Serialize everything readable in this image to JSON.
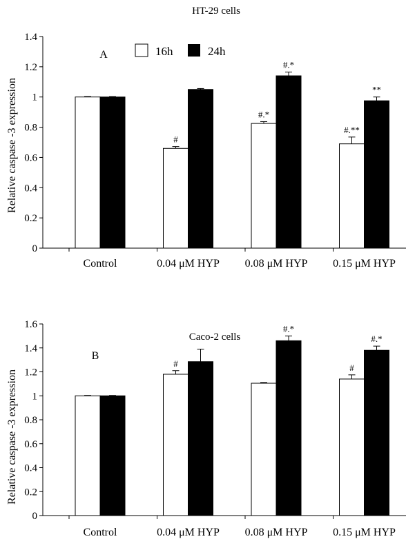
{
  "legend": {
    "items": [
      {
        "label": "16h",
        "color": "#ffffff"
      },
      {
        "label": "24h",
        "color": "#000000"
      }
    ]
  },
  "chart_data": [
    {
      "type": "bar",
      "panel": "A",
      "title": "HT-29 cells",
      "ylabel": "Relative caspase -3 expression",
      "xlabel": "",
      "categories": [
        "Control",
        "0.04 μM HYP",
        "0.08 μM HYP",
        "0.15 μM HYP"
      ],
      "ylim": [
        0,
        1.4
      ],
      "yticks": [
        0,
        0.2,
        0.4,
        0.6,
        0.8,
        1,
        1.2,
        1.4
      ],
      "legend_position": "top",
      "series": [
        {
          "name": "16h",
          "color": "#ffffff",
          "values": [
            1.0,
            0.66,
            0.825,
            0.69
          ],
          "errors": [
            0.003,
            0.012,
            0.012,
            0.045
          ],
          "annotations": [
            "",
            "#",
            "#.*",
            "#.**"
          ]
        },
        {
          "name": "24h",
          "color": "#000000",
          "values": [
            1.0,
            1.05,
            1.14,
            0.975
          ],
          "errors": [
            0.003,
            0.006,
            0.025,
            0.025
          ],
          "annotations": [
            "",
            "",
            "#.*",
            "**"
          ]
        }
      ]
    },
    {
      "type": "bar",
      "panel": "B",
      "title": "Caco-2 cells",
      "ylabel": "Relative caspase -3 expression",
      "xlabel": "",
      "categories": [
        "Control",
        "0.04 μM HYP",
        "0.08 μM HYP",
        "0.15 μM HYP"
      ],
      "ylim": [
        0,
        1.6
      ],
      "yticks": [
        0,
        0.2,
        0.4,
        0.6,
        0.8,
        1,
        1.2,
        1.4,
        1.6
      ],
      "series": [
        {
          "name": "16h",
          "color": "#ffffff",
          "values": [
            1.0,
            1.18,
            1.105,
            1.14
          ],
          "errors": [
            0.003,
            0.03,
            0.006,
            0.035
          ],
          "annotations": [
            "",
            "#",
            "",
            "#"
          ]
        },
        {
          "name": "24h",
          "color": "#000000",
          "values": [
            1.0,
            1.285,
            1.46,
            1.38
          ],
          "errors": [
            0.003,
            0.105,
            0.04,
            0.035
          ],
          "annotations": [
            "",
            "",
            "#.*",
            "#.*"
          ]
        }
      ]
    }
  ]
}
